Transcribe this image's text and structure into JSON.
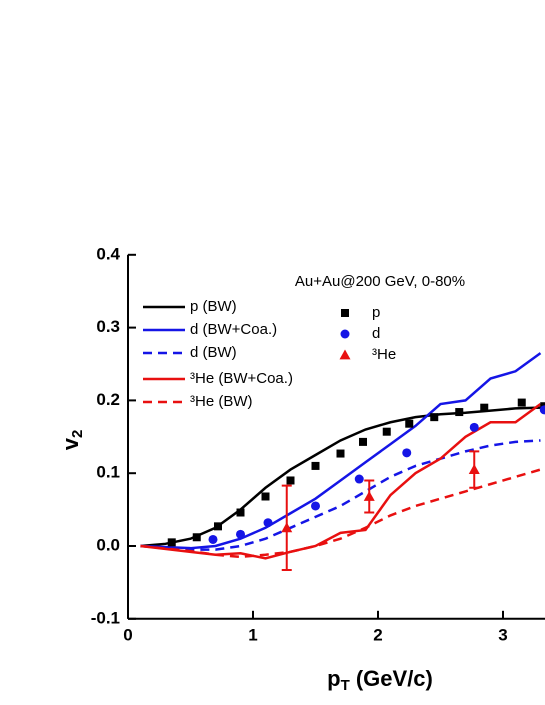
{
  "chart_data": {
    "type": "line",
    "annotation": "Au+Au@200 GeV, 0-80%",
    "x_label": [
      "p",
      "T",
      " (GeV/c)"
    ],
    "y_label": [
      "v",
      "2"
    ],
    "xlim": [
      0,
      3.34
    ],
    "ylim": [
      -0.1,
      0.4
    ],
    "xticks": [
      0,
      1,
      2,
      3
    ],
    "yticks": [
      -0.1,
      {
        "value": 0,
        "label": "0.0"
      },
      0.1,
      0.2,
      0.3,
      0.4
    ],
    "series": [
      {
        "name": "p (BW)",
        "color": "#000000",
        "mark": "solid",
        "x": [
          0.1,
          0.3,
          0.5,
          0.7,
          0.9,
          1.1,
          1.3,
          1.5,
          1.7,
          1.9,
          2.1,
          2.3,
          2.5,
          2.7,
          2.9,
          3.1,
          3.3
        ],
        "values": [
          0,
          0.003,
          0.01,
          0.025,
          0.05,
          0.08,
          0.105,
          0.125,
          0.145,
          0.16,
          0.17,
          0.177,
          0.181,
          0.183,
          0.186,
          0.189,
          0.19
        ]
      },
      {
        "name": "d (BW+Coa.)",
        "color": "#1515e6",
        "mark": "solid",
        "x": [
          0.1,
          0.5,
          0.7,
          0.9,
          1.1,
          1.3,
          1.5,
          1.7,
          1.9,
          2.1,
          2.3,
          2.5,
          2.7,
          2.9,
          3.1,
          3.3
        ],
        "values": [
          0,
          -0.003,
          0,
          0.01,
          0.025,
          0.045,
          0.065,
          0.09,
          0.115,
          0.14,
          0.165,
          0.195,
          0.2,
          0.23,
          0.24,
          0.265
        ]
      },
      {
        "name": "d (BW)",
        "color": "#1515e6",
        "mark": "dash",
        "x": [
          0.1,
          0.5,
          0.7,
          0.9,
          1.1,
          1.3,
          1.5,
          1.7,
          1.9,
          2.1,
          2.3,
          2.5,
          2.7,
          2.9,
          3.1,
          3.3
        ],
        "values": [
          0,
          -0.005,
          -0.005,
          0,
          0.01,
          0.025,
          0.04,
          0.055,
          0.075,
          0.095,
          0.11,
          0.12,
          0.13,
          0.138,
          0.143,
          0.145
        ]
      },
      {
        "name": "³He (BW+Coa.)",
        "color": "#e81010",
        "mark": "solid",
        "x": [
          0.1,
          0.5,
          0.7,
          0.9,
          1.1,
          1.3,
          1.5,
          1.7,
          1.9,
          2.1,
          2.3,
          2.5,
          2.7,
          2.9,
          3.1,
          3.3
        ],
        "values": [
          0,
          -0.008,
          -0.012,
          -0.01,
          -0.017,
          -0.008,
          0,
          0.018,
          0.022,
          0.07,
          0.1,
          0.12,
          0.15,
          0.17,
          0.17,
          0.195
        ]
      },
      {
        "name": "³He (BW)",
        "color": "#e81010",
        "mark": "dash",
        "x": [
          0.1,
          0.5,
          0.7,
          0.9,
          1.1,
          1.3,
          1.5,
          1.7,
          1.9,
          2.1,
          2.3,
          2.5,
          2.7,
          2.9,
          3.1,
          3.3
        ],
        "values": [
          0,
          -0.007,
          -0.012,
          -0.015,
          -0.012,
          -0.008,
          0,
          0.01,
          0.025,
          0.042,
          0.055,
          0.065,
          0.075,
          0.085,
          0.095,
          0.105
        ]
      },
      {
        "name": "p",
        "color": "#000000",
        "mark": "square",
        "x": [
          0.35,
          0.55,
          0.72,
          0.9,
          1.1,
          1.3,
          1.5,
          1.7,
          1.88,
          2.07,
          2.25,
          2.45,
          2.65,
          2.85,
          3.15,
          3.33
        ],
        "values": [
          0.005,
          0.012,
          0.027,
          0.046,
          0.068,
          0.09,
          0.11,
          0.127,
          0.143,
          0.157,
          0.168,
          0.177,
          0.184,
          0.19,
          0.197,
          0.192
        ]
      },
      {
        "name": "d",
        "color": "#1515e6",
        "mark": "circle",
        "x": [
          0.68,
          0.9,
          1.12,
          1.5,
          1.85,
          2.23,
          2.77,
          3.33
        ],
        "values": [
          0.009,
          0.016,
          0.032,
          0.055,
          0.092,
          0.128,
          0.163,
          0.187
        ]
      },
      {
        "name": "³He",
        "color": "#e81010",
        "mark": "triangle",
        "x": [
          1.27,
          1.93,
          2.77
        ],
        "values": [
          0.025,
          0.068,
          0.105
        ],
        "errors": [
          0.058,
          0.022,
          0.025
        ]
      }
    ]
  }
}
